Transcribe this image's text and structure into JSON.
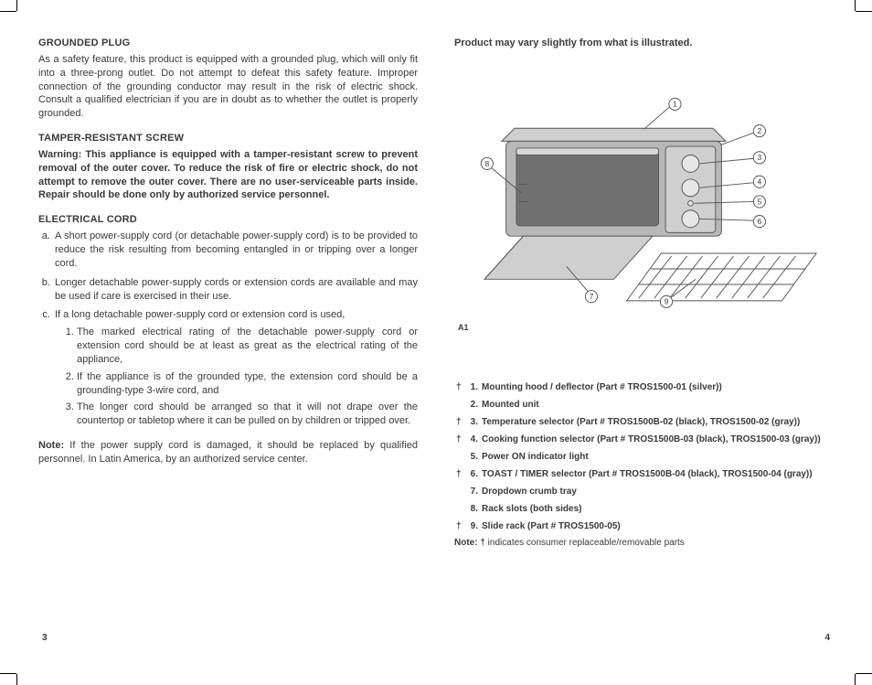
{
  "left": {
    "h1": "GROUNDED PLUG",
    "p1": "As a safety feature, this product is equipped with a grounded plug, which will only fit into a three-prong outlet. Do not attempt to defeat this safety feature. Improper connection of the grounding conductor may result in the risk of electric shock. Consult a qualified electrician if you are in doubt as to whether the outlet is properly grounded.",
    "h2": "TAMPER-RESISTANT SCREW",
    "p2": "Warning: This appliance is equipped with a tamper-resistant screw to prevent removal of the outer cover. To reduce the risk of fire or electric shock, do not attempt to remove the outer cover. There are no user-serviceable parts inside. Repair should be done only by authorized service personnel.",
    "h3": "ELECTRICAL CORD",
    "li_a": "A short power-supply cord (or detachable power-supply cord) is to be provided to reduce the risk resulting from becoming entangled in or tripping over a longer cord.",
    "li_b": "Longer detachable power-supply cords or extension cords are available and may be used if care is exercised in their use.",
    "li_c": "If a long detachable power-supply cord or extension cord is used,",
    "li_c1": "The marked electrical rating of the detachable power-supply cord or extension cord should be at least as great as the electrical rating of the appliance,",
    "li_c2": "If the appliance is of the grounded type, the extension cord should be a grounding-type 3-wire cord, and",
    "li_c3": "The longer cord should be arranged so that it will not drape over the countertop or tabletop where it can be pulled on by children or tripped over.",
    "note_label": "Note:",
    "note_text": " If the power supply cord is damaged, it should be replaced by qualified personnel. In Latin America, by an authorized service center.",
    "pagenum": "3"
  },
  "right": {
    "title": "Product may vary slightly from what is illustrated.",
    "figcaption": "A1",
    "callouts": [
      "1",
      "2",
      "3",
      "4",
      "5",
      "6",
      "7",
      "8",
      "9"
    ],
    "parts": [
      {
        "dag": "†",
        "n": "1.",
        "t": "Mounting hood / deflector (Part # TROS1500-01 (silver))"
      },
      {
        "dag": "",
        "n": "2.",
        "t": "Mounted unit"
      },
      {
        "dag": "†",
        "n": "3.",
        "t": "Temperature selector (Part # TROS1500B-02 (black), TROS1500-02 (gray))"
      },
      {
        "dag": "†",
        "n": "4.",
        "t": "Cooking function selector (Part # TROS1500B-03 (black), TROS1500-03 (gray))"
      },
      {
        "dag": "",
        "n": "5.",
        "t": "Power ON indicator light"
      },
      {
        "dag": "†",
        "n": "6.",
        "t": "TOAST / TIMER selector (Part # TROS1500B-04 (black), TROS1500-04 (gray))"
      },
      {
        "dag": "",
        "n": "7.",
        "t": "Dropdown crumb tray"
      },
      {
        "dag": "",
        "n": "8.",
        "t": "Rack slots (both sides)"
      },
      {
        "dag": "†",
        "n": "9.",
        "t": "Slide rack (Part # TROS1500-05)"
      }
    ],
    "note_label": "Note: ",
    "note_dag": "†",
    "note_text": " indicates consumer replaceable/removable parts",
    "pagenum": "4"
  },
  "style": {
    "text_color": "#3a3a3a",
    "diagram_stroke": "#555555",
    "diagram_fill_light": "#cfcfcf",
    "diagram_fill_mid": "#b8b8b8",
    "diagram_fill_dark": "#8a8a8a",
    "diagram_glass": "#707070"
  }
}
